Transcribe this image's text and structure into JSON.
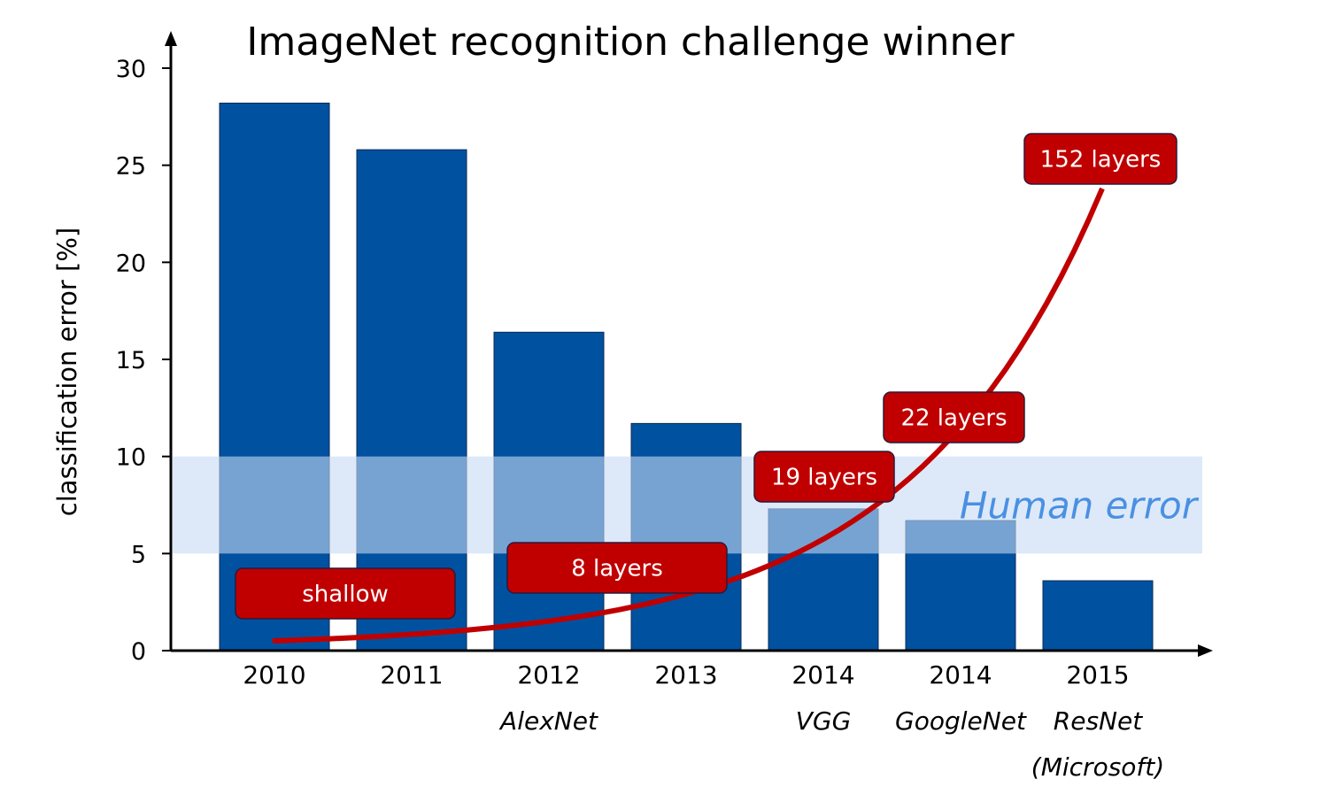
{
  "chart_data": {
    "type": "bar",
    "title": "ImageNet recognition challenge winner",
    "xlabel": "",
    "ylabel": "classification error [%]",
    "ylim": [
      0,
      30
    ],
    "yticks": [
      0,
      5,
      10,
      15,
      20,
      25,
      30
    ],
    "grid": false,
    "categories": [
      "2010",
      "2011",
      "2012",
      "2013",
      "2014",
      "2014",
      "2015"
    ],
    "sublabels": [
      "",
      "",
      "AlexNet",
      "",
      "VGG",
      "GoogleNet",
      "ResNet\n(Microsoft)"
    ],
    "values": [
      28.2,
      25.8,
      16.4,
      11.7,
      7.3,
      6.7,
      3.6
    ],
    "bar_color": "#0051a0",
    "band": {
      "label": "Human error",
      "from": 5,
      "to": 10,
      "color": "#c6dbf3",
      "label_color": "#4a90e2"
    },
    "depth_curve": {
      "color": "#c00000"
    },
    "annotations": [
      "shallow",
      "8 layers",
      "19 layers",
      "22 layers",
      "152 layers"
    ]
  }
}
